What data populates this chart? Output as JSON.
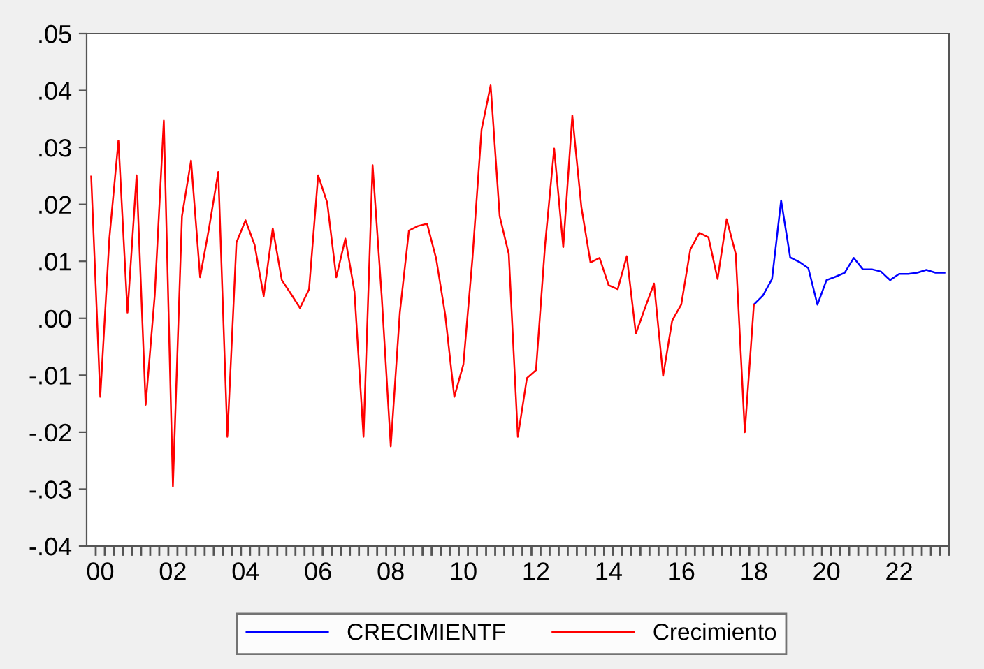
{
  "chart_data": {
    "type": "line",
    "categories": [
      null,
      "00",
      null,
      null,
      null,
      null,
      null,
      null,
      null,
      "02",
      null,
      null,
      null,
      null,
      null,
      null,
      null,
      "04",
      null,
      null,
      null,
      null,
      null,
      null,
      null,
      "06",
      null,
      null,
      null,
      null,
      null,
      null,
      null,
      "08",
      null,
      null,
      null,
      null,
      null,
      null,
      null,
      "10",
      null,
      null,
      null,
      null,
      null,
      null,
      null,
      "12",
      null,
      null,
      null,
      null,
      null,
      null,
      null,
      "14",
      null,
      null,
      null,
      null,
      null,
      null,
      null,
      "16",
      null,
      null,
      null,
      null,
      null,
      null,
      null,
      "18",
      null,
      null,
      null,
      null,
      null,
      null,
      null,
      "20",
      null,
      null,
      null,
      null,
      null,
      null,
      null,
      "22",
      null,
      null,
      null,
      null,
      null
    ],
    "series": [
      {
        "name": "CRECIMIENTF",
        "color": "#0000ff",
        "values": [
          null,
          null,
          null,
          null,
          null,
          null,
          null,
          null,
          null,
          null,
          null,
          null,
          null,
          null,
          null,
          null,
          null,
          null,
          null,
          null,
          null,
          null,
          null,
          null,
          null,
          null,
          null,
          null,
          null,
          null,
          null,
          null,
          null,
          null,
          null,
          null,
          null,
          null,
          null,
          null,
          null,
          null,
          null,
          null,
          null,
          null,
          null,
          null,
          null,
          null,
          null,
          null,
          null,
          null,
          null,
          null,
          null,
          null,
          null,
          null,
          null,
          null,
          null,
          null,
          null,
          null,
          null,
          null,
          null,
          null,
          null,
          null,
          null,
          0.0024,
          0.004,
          0.0069,
          0.0207,
          0.0107,
          0.0099,
          0.0088,
          0.0024,
          0.0067,
          0.0073,
          0.008,
          0.0106,
          0.0086,
          0.0086,
          0.0082,
          0.0067,
          0.0078,
          0.0078,
          0.008,
          0.0085,
          0.008,
          0.008
        ]
      },
      {
        "name": "Crecimiento",
        "color": "#ff0000",
        "values": [
          0.0249,
          -0.0138,
          0.014,
          0.0312,
          0.001,
          0.0251,
          -0.0152,
          0.004,
          0.0347,
          -0.0295,
          0.0179,
          0.0277,
          0.0072,
          0.016,
          0.0257,
          -0.0208,
          0.0133,
          0.0172,
          0.0129,
          0.0039,
          0.0158,
          0.0067,
          0.0043,
          0.0018,
          0.0051,
          0.0251,
          0.0203,
          0.0072,
          0.014,
          0.0047,
          -0.0208,
          0.0269,
          0.0039,
          -0.0225,
          0.001,
          0.0154,
          0.0162,
          0.0166,
          0.0105,
          0.0006,
          -0.0138,
          -0.0081,
          0.0105,
          0.0331,
          0.0409,
          0.0179,
          0.0113,
          -0.0208,
          -0.0105,
          -0.0091,
          0.0129,
          0.0298,
          0.0125,
          0.0356,
          0.0195,
          0.0098,
          0.0106,
          0.0058,
          0.0051,
          0.0109,
          -0.0027,
          0.0018,
          0.0061,
          -0.0101,
          -0.0004,
          0.0024,
          0.0121,
          0.015,
          0.0142,
          0.0069,
          0.0174,
          0.0113,
          -0.02,
          0.0024,
          null,
          null,
          null,
          null,
          null,
          null,
          null,
          null,
          null,
          null,
          null,
          null,
          null,
          null,
          null,
          null,
          null,
          null,
          null,
          null,
          null
        ]
      }
    ],
    "ylim": [
      -0.04,
      0.05
    ],
    "yticks": [
      {
        "value": -0.04,
        "label": "-.04"
      },
      {
        "value": -0.03,
        "label": "-.03"
      },
      {
        "value": -0.02,
        "label": "-.02"
      },
      {
        "value": -0.01,
        "label": "-.01"
      },
      {
        "value": 0.0,
        "label": ".00"
      },
      {
        "value": 0.01,
        "label": ".01"
      },
      {
        "value": 0.02,
        "label": ".02"
      },
      {
        "value": 0.03,
        "label": ".03"
      },
      {
        "value": 0.04,
        "label": ".04"
      },
      {
        "value": 0.05,
        "label": ".05"
      }
    ],
    "legend": "bottom"
  }
}
